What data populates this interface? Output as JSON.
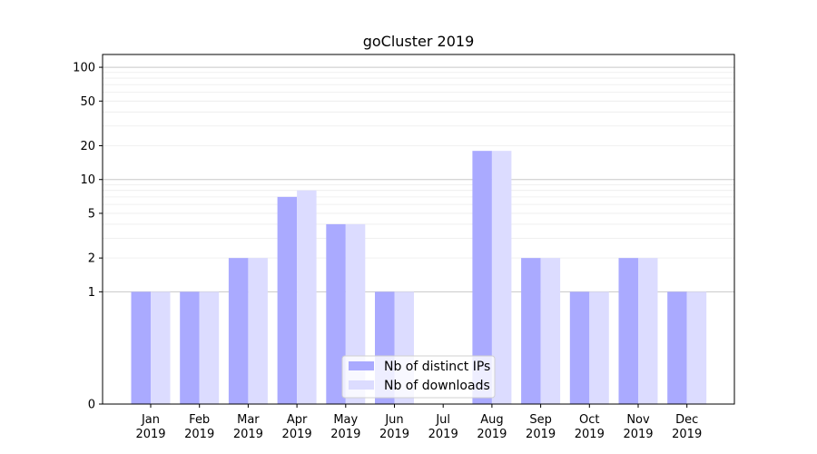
{
  "chart_data": {
    "type": "bar",
    "title": "goCluster 2019",
    "xlabel": "",
    "ylabel": "",
    "y_scale": "symlog",
    "ylim": [
      0,
      130
    ],
    "yticks": [
      0,
      1,
      2,
      5,
      10,
      20,
      50,
      100
    ],
    "grid": "horizontal",
    "legend_position": "lower-center",
    "categories": [
      "Jan 2019",
      "Feb 2019",
      "Mar 2019",
      "Apr 2019",
      "May 2019",
      "Jun 2019",
      "Jul 2019",
      "Aug 2019",
      "Sep 2019",
      "Oct 2019",
      "Nov 2019",
      "Dec 2019"
    ],
    "category_lines": [
      [
        "Jan",
        "2019"
      ],
      [
        "Feb",
        "2019"
      ],
      [
        "Mar",
        "2019"
      ],
      [
        "Apr",
        "2019"
      ],
      [
        "May",
        "2019"
      ],
      [
        "Jun",
        "2019"
      ],
      [
        "Jul",
        "2019"
      ],
      [
        "Aug",
        "2019"
      ],
      [
        "Sep",
        "2019"
      ],
      [
        "Oct",
        "2019"
      ],
      [
        "Nov",
        "2019"
      ],
      [
        "Dec",
        "2019"
      ]
    ],
    "series": [
      {
        "name": "Nb of distinct IPs",
        "color": "#aaaaff",
        "values": [
          1,
          1,
          2,
          7,
          4,
          1,
          0,
          18,
          2,
          1,
          2,
          1
        ]
      },
      {
        "name": "Nb of downloads",
        "color": "#dcdcff",
        "values": [
          1,
          1,
          2,
          8,
          4,
          1,
          0,
          18,
          2,
          1,
          2,
          1
        ]
      }
    ]
  }
}
